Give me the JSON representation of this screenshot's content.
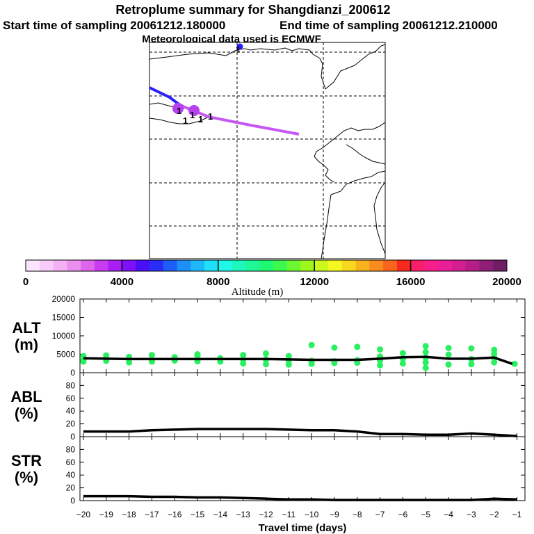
{
  "header": {
    "title": "Retroplume summary for Shangdianzi_200612",
    "start_label": "Start time of sampling 20061212.180000",
    "end_label": "End time of sampling 20061212.210000",
    "met_label": "Meteorological data used is ECMWF"
  },
  "map": {
    "cluster_labels": [
      "1",
      "1",
      "1",
      "1",
      "1"
    ],
    "top_marker_label": "1"
  },
  "colorbar": {
    "label": "Altitude (m)",
    "ticks": [
      "0",
      "4000",
      "8000",
      "12000",
      "16000",
      "20000"
    ],
    "min": 0,
    "max": 20000,
    "colors": [
      "#fde6fd",
      "#f9cdf9",
      "#f3b1f4",
      "#ea8ff0",
      "#df66ec",
      "#c93bf0",
      "#a91ef5",
      "#7d12f8",
      "#4a0ef8",
      "#2a2cf8",
      "#1e5ef8",
      "#1e8ef8",
      "#1eb8f8",
      "#1ee0f8",
      "#1ef8e6",
      "#1ef8bd",
      "#1ef898",
      "#1ef873",
      "#3cf84f",
      "#6cf831",
      "#9ef81e",
      "#ccf81e",
      "#f4f81e",
      "#f8d81e",
      "#f8b21e",
      "#f88c1e",
      "#f8661e",
      "#f82a1e",
      "#f81e6a",
      "#f81e8a",
      "#ea1e96",
      "#d41e90",
      "#b41e86",
      "#8e1e76",
      "#6e1e64"
    ]
  },
  "chart_data": [
    {
      "type": "line",
      "panel": "ALT",
      "ylabel_line1": "ALT",
      "ylabel_line2": "(m)",
      "ylim": [
        0,
        20000
      ],
      "yticks": [
        "0",
        "5000",
        "10000",
        "15000",
        "20000"
      ],
      "x": [
        -20,
        -19,
        -18,
        -17,
        -16,
        -15,
        -14,
        -13,
        -12,
        -11,
        -10,
        -9,
        -8,
        -7,
        -6,
        -5,
        -4,
        -3,
        -2,
        -1.2
      ],
      "series": [
        {
          "name": "mean altitude",
          "values": [
            3900,
            3800,
            3700,
            3700,
            3700,
            3700,
            3700,
            3700,
            3700,
            3600,
            3500,
            3500,
            3500,
            3800,
            4200,
            4300,
            3800,
            3800,
            4100,
            2400
          ]
        }
      ],
      "points": [
        {
          "x": -20,
          "y": 3500
        },
        {
          "x": -20,
          "y": 4500
        },
        {
          "x": -20,
          "y": 3000
        },
        {
          "x": -19,
          "y": 3200
        },
        {
          "x": -19,
          "y": 4700
        },
        {
          "x": -19,
          "y": 3800
        },
        {
          "x": -18,
          "y": 2800
        },
        {
          "x": -18,
          "y": 3700
        },
        {
          "x": -18,
          "y": 4300
        },
        {
          "x": -17,
          "y": 3000
        },
        {
          "x": -17,
          "y": 4800
        },
        {
          "x": -17,
          "y": 3500
        },
        {
          "x": -16,
          "y": 3300
        },
        {
          "x": -16,
          "y": 4200
        },
        {
          "x": -15,
          "y": 3100
        },
        {
          "x": -15,
          "y": 4500
        },
        {
          "x": -15,
          "y": 5000
        },
        {
          "x": -14,
          "y": 3000
        },
        {
          "x": -14,
          "y": 3900
        },
        {
          "x": -13,
          "y": 2500
        },
        {
          "x": -13,
          "y": 3600
        },
        {
          "x": -13,
          "y": 4800
        },
        {
          "x": -12,
          "y": 2300
        },
        {
          "x": -12,
          "y": 3600
        },
        {
          "x": -12,
          "y": 5200
        },
        {
          "x": -11,
          "y": 2200
        },
        {
          "x": -11,
          "y": 3300
        },
        {
          "x": -11,
          "y": 4500
        },
        {
          "x": -10,
          "y": 2400
        },
        {
          "x": -10,
          "y": 3200
        },
        {
          "x": -10,
          "y": 7500
        },
        {
          "x": -9,
          "y": 2600
        },
        {
          "x": -9,
          "y": 3100
        },
        {
          "x": -9,
          "y": 6800
        },
        {
          "x": -8,
          "y": 2700
        },
        {
          "x": -8,
          "y": 3400
        },
        {
          "x": -8,
          "y": 7000
        },
        {
          "x": -7,
          "y": 2000
        },
        {
          "x": -7,
          "y": 3300
        },
        {
          "x": -7,
          "y": 4400
        },
        {
          "x": -7,
          "y": 6300
        },
        {
          "x": -6,
          "y": 2500
        },
        {
          "x": -6,
          "y": 3800
        },
        {
          "x": -6,
          "y": 5300
        },
        {
          "x": -5,
          "y": 1300
        },
        {
          "x": -5,
          "y": 2800
        },
        {
          "x": -5,
          "y": 4100
        },
        {
          "x": -5,
          "y": 5600
        },
        {
          "x": -5,
          "y": 7200
        },
        {
          "x": -4,
          "y": 2200
        },
        {
          "x": -4,
          "y": 4900
        },
        {
          "x": -4,
          "y": 6700
        },
        {
          "x": -3,
          "y": 2300
        },
        {
          "x": -3,
          "y": 3700
        },
        {
          "x": -3,
          "y": 6600
        },
        {
          "x": -2,
          "y": 2800
        },
        {
          "x": -2,
          "y": 4100
        },
        {
          "x": -2,
          "y": 5100
        },
        {
          "x": -2,
          "y": 6200
        },
        {
          "x": -1.1,
          "y": 2400
        }
      ]
    },
    {
      "type": "line",
      "panel": "ABL",
      "ylabel_line1": "ABL",
      "ylabel_line2": "(%)",
      "ylim": [
        0,
        100
      ],
      "yticks": [
        "0",
        "20",
        "40",
        "60",
        "80"
      ],
      "x": [
        -20,
        -19,
        -18,
        -17,
        -16,
        -15,
        -14,
        -13,
        -12,
        -11,
        -10,
        -9,
        -8,
        -7,
        -6,
        -5,
        -4,
        -3,
        -2,
        -1
      ],
      "series": [
        {
          "name": "ABL fraction",
          "values": [
            8,
            8,
            8,
            10,
            11,
            12,
            12,
            12,
            12,
            11,
            10,
            10,
            8,
            4,
            4,
            3,
            3,
            5,
            3,
            1
          ]
        }
      ]
    },
    {
      "type": "line",
      "panel": "STR",
      "ylabel_line1": "STR",
      "ylabel_line2": "(%)",
      "ylim": [
        0,
        100
      ],
      "yticks": [
        "0",
        "20",
        "40",
        "60",
        "80"
      ],
      "xlabel": "Travel time (days)",
      "xticks": [
        "-20",
        "-19",
        "-18",
        "-17",
        "-16",
        "-15",
        "-14",
        "-13",
        "-12",
        "-11",
        "-10",
        "-9",
        "-8",
        "-7",
        "-6",
        "-5",
        "-4",
        "-3",
        "-2",
        "-1"
      ],
      "x": [
        -20,
        -19,
        -18,
        -17,
        -16,
        -15,
        -14,
        -13,
        -12,
        -11,
        -10,
        -9,
        -8,
        -7,
        -6,
        -5,
        -4,
        -3,
        -2,
        -1
      ],
      "series": [
        {
          "name": "STR fraction",
          "values": [
            7,
            7,
            7,
            6,
            6,
            5,
            5,
            4,
            3,
            2,
            2,
            1,
            1,
            1,
            1,
            1,
            1,
            1,
            3,
            2
          ]
        }
      ]
    }
  ]
}
